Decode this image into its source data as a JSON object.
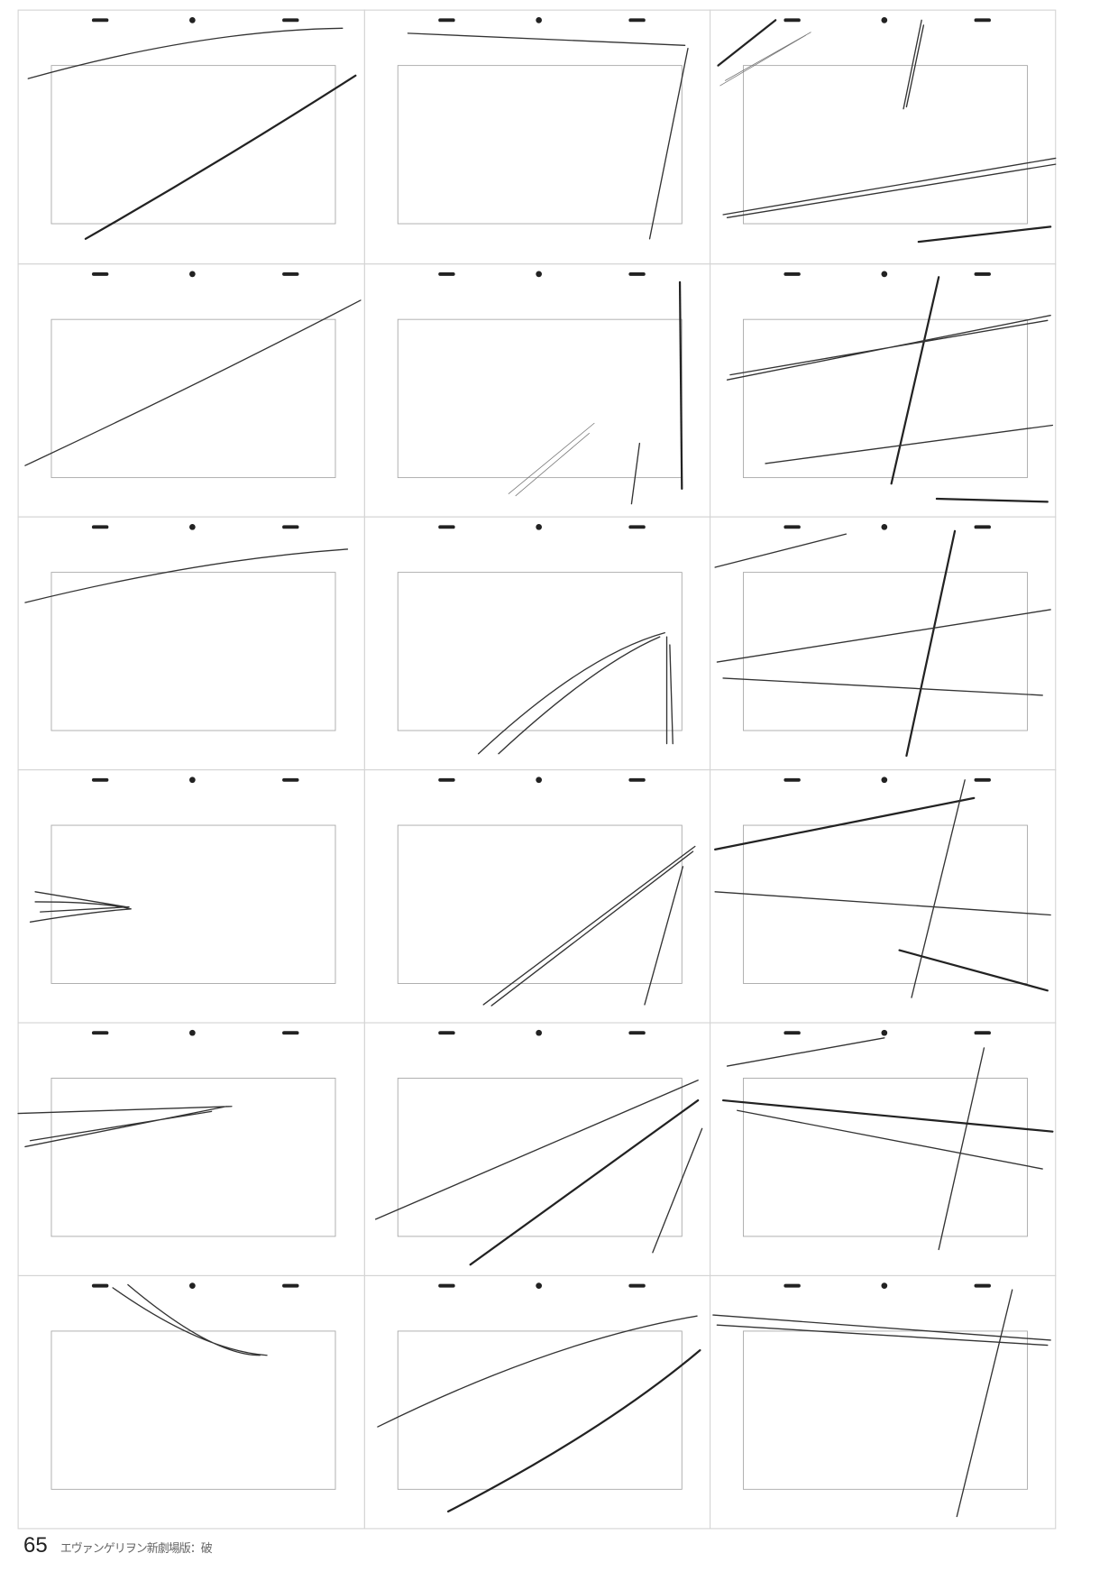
{
  "footer": {
    "page_number": "65",
    "book_title": "エヴァンゲリヲン新劇場版：破"
  },
  "layout_sheets": {
    "rows": 6,
    "columns": 3
  }
}
